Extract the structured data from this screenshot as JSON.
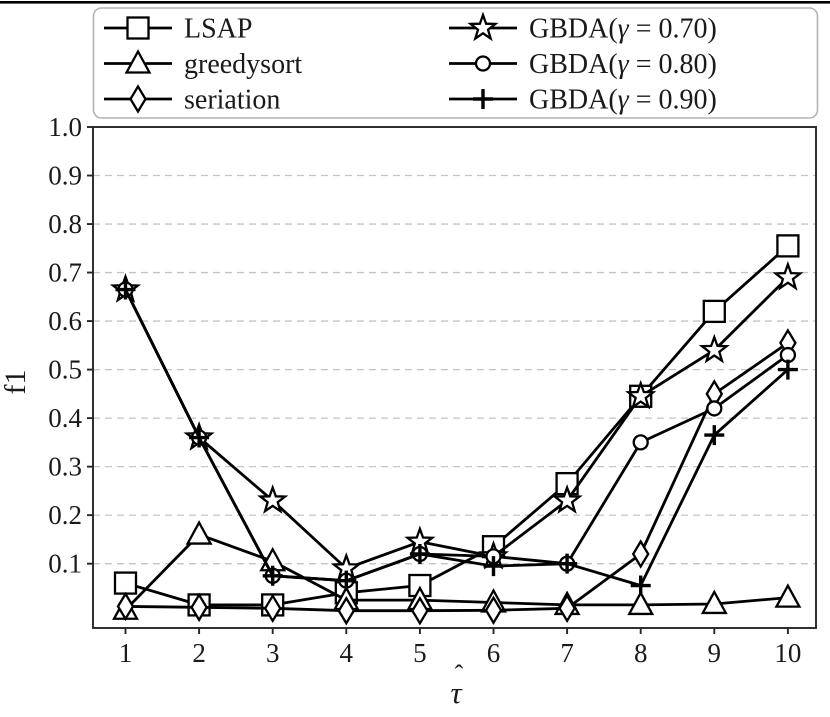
{
  "figure": {
    "background": "#ffffff",
    "top_rule_color": "#000000"
  },
  "chart_data": {
    "type": "line",
    "title": "",
    "xlabel": "τ̂",
    "xlabel_base": "τ",
    "xlabel_accent": "ˆ",
    "ylabel": "f1",
    "x": [
      1,
      2,
      3,
      4,
      5,
      6,
      7,
      8,
      9,
      10
    ],
    "xtick_labels": [
      "1",
      "2",
      "3",
      "4",
      "5",
      "6",
      "7",
      "8",
      "9",
      "10"
    ],
    "ytick_values": [
      0.1,
      0.2,
      0.3,
      0.4,
      0.5,
      0.6,
      0.7,
      0.8,
      0.9,
      1.0
    ],
    "ytick_labels": [
      "0.1",
      "0.2",
      "0.3",
      "0.4",
      "0.5",
      "0.6",
      "0.7",
      "0.8",
      "0.9",
      "1.0"
    ],
    "xlim": [
      0.55,
      10.4
    ],
    "ylim": [
      -0.035,
      1.0
    ],
    "grid": "horizontal-dashed",
    "grid_color": "#c4c4c4",
    "axis_color": "#262626",
    "line_color": "#000000",
    "marker_fill": "#ffffff",
    "legend_position": "top-outside",
    "legend_columns": 2,
    "legend_border_color": "#b4b4b4",
    "series": [
      {
        "name": "LSAP",
        "marker": "square",
        "values": [
          0.06,
          0.015,
          0.015,
          0.04,
          0.055,
          0.135,
          0.265,
          0.445,
          0.62,
          0.755
        ]
      },
      {
        "name": "greedysort",
        "marker": "triangle",
        "values": [
          0.005,
          0.16,
          0.105,
          0.025,
          0.025,
          0.02,
          0.015,
          0.015,
          0.017,
          0.03
        ]
      },
      {
        "name": "seriation",
        "marker": "diamond",
        "values": [
          0.012,
          0.01,
          0.008,
          0.003,
          0.003,
          0.004,
          0.008,
          0.12,
          0.45,
          0.555
        ]
      },
      {
        "name": "GBDA(γ = 0.70)",
        "marker": "star",
        "values": [
          0.665,
          0.36,
          0.23,
          0.09,
          0.145,
          0.115,
          0.23,
          0.445,
          0.54,
          0.69
        ]
      },
      {
        "name": "GBDA(γ = 0.80)",
        "marker": "circle",
        "values": [
          0.665,
          0.36,
          0.075,
          0.065,
          0.12,
          0.115,
          0.1,
          0.35,
          0.42,
          0.53
        ]
      },
      {
        "name": "GBDA(γ = 0.90)",
        "marker": "plus",
        "values": [
          0.665,
          0.36,
          0.075,
          0.065,
          0.12,
          0.095,
          0.1,
          0.055,
          0.365,
          0.5
        ]
      }
    ]
  }
}
